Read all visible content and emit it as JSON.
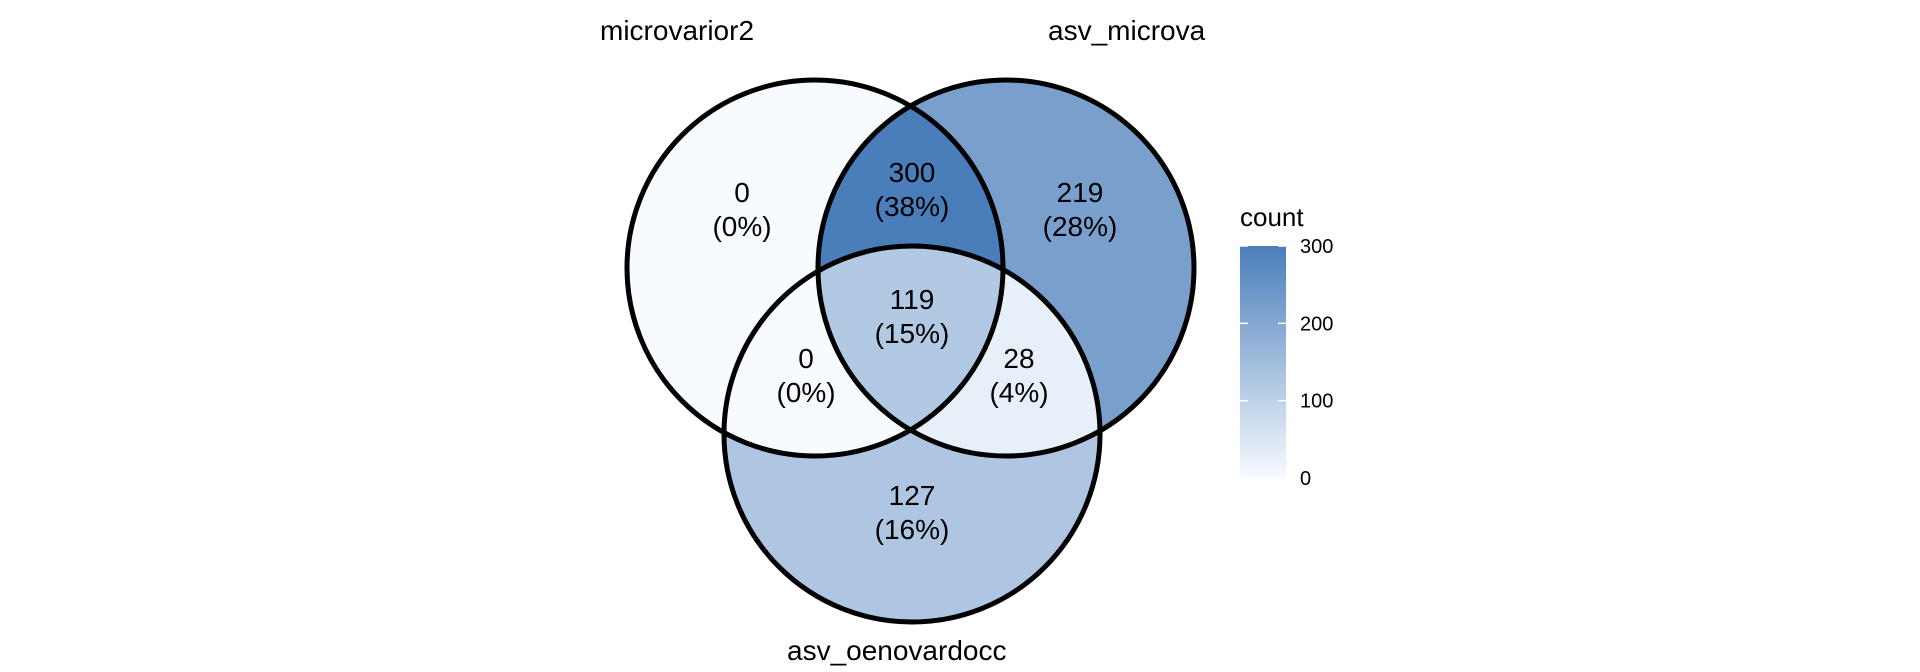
{
  "chart_data": {
    "type": "venn",
    "sets": [
      "microvarior2",
      "asv_microva",
      "asv_oenovardocc"
    ],
    "regions": [
      {
        "sets": [
          "microvarior2"
        ],
        "count": 0,
        "percent": "(0%)"
      },
      {
        "sets": [
          "asv_microva"
        ],
        "count": 219,
        "percent": "(28%)"
      },
      {
        "sets": [
          "asv_oenovardocc"
        ],
        "count": 127,
        "percent": "(16%)"
      },
      {
        "sets": [
          "microvarior2",
          "asv_microva"
        ],
        "count": 300,
        "percent": "(38%)"
      },
      {
        "sets": [
          "microvarior2",
          "asv_oenovardocc"
        ],
        "count": 0,
        "percent": "(0%)"
      },
      {
        "sets": [
          "asv_microva",
          "asv_oenovardocc"
        ],
        "count": 28,
        "percent": "(4%)"
      },
      {
        "sets": [
          "microvarior2",
          "asv_microva",
          "asv_oenovardocc"
        ],
        "count": 119,
        "percent": "(15%)"
      }
    ],
    "legend": {
      "title": "count",
      "placement": "right",
      "ticks": [
        0,
        100,
        200,
        300
      ],
      "range": [
        0,
        300
      ],
      "low_color": "#F7FBFF",
      "high_color": "#4A7EBB"
    }
  }
}
